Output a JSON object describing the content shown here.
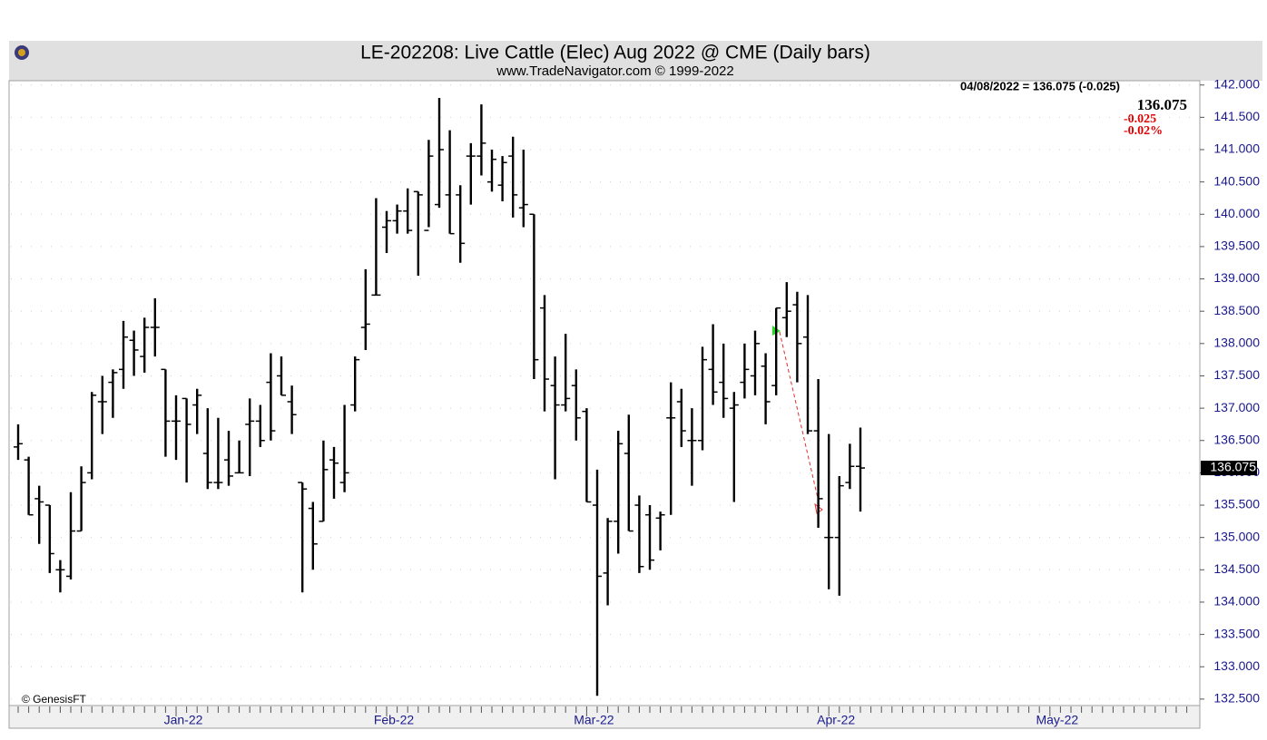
{
  "chart_data": {
    "type": "ohlc",
    "title": "LE-202208:  Live Cattle (Elec) Aug 2022 @ CME  (Daily bars)",
    "subtitle": "www.TradeNavigator.com © 1999-2022",
    "info": "04/08/2022 = 136.075 (-0.025)",
    "last": "136.075",
    "change": "-0.025",
    "change_pct": "-0.02%",
    "source": "© GenesisFT",
    "last_price": 136.075,
    "color": "#000000",
    "grid": true,
    "ylim": [
      132.4,
      142.08
    ],
    "yticks": [
      {
        "value": 132.5,
        "label": "132.500"
      },
      {
        "value": 133,
        "label": "133.000"
      },
      {
        "value": 133.5,
        "label": "133.500"
      },
      {
        "value": 134,
        "label": "134.000"
      },
      {
        "value": 134.5,
        "label": "134.500"
      },
      {
        "value": 135,
        "label": "135.000"
      },
      {
        "value": 135.5,
        "label": "135.500"
      },
      {
        "value": 136,
        "label": "136.000"
      },
      {
        "value": 136.5,
        "label": "136.500"
      },
      {
        "value": 137,
        "label": "137.000"
      },
      {
        "value": 137.5,
        "label": "137.500"
      },
      {
        "value": 138,
        "label": "138.000"
      },
      {
        "value": 138.5,
        "label": "138.500"
      },
      {
        "value": 139,
        "label": "139.000"
      },
      {
        "value": 139.5,
        "label": "139.500"
      },
      {
        "value": 140,
        "label": "140.000"
      },
      {
        "value": 140.5,
        "label": "140.500"
      },
      {
        "value": 141,
        "label": "141.000"
      },
      {
        "value": 141.5,
        "label": "141.500"
      },
      {
        "value": 142,
        "label": "142.000"
      }
    ],
    "categories": [
      null,
      null,
      null,
      null,
      null,
      null,
      null,
      null,
      null,
      null,
      null,
      null,
      null,
      null,
      null,
      "Jan-22",
      null,
      null,
      null,
      null,
      null,
      null,
      null,
      null,
      null,
      null,
      null,
      null,
      null,
      null,
      null,
      null,
      null,
      null,
      null,
      "Feb-22",
      null,
      null,
      null,
      null,
      null,
      null,
      null,
      null,
      null,
      null,
      null,
      null,
      null,
      null,
      null,
      null,
      null,
      null,
      "Mar-22",
      null,
      null,
      null,
      null,
      null,
      null,
      null,
      null,
      null,
      null,
      null,
      null,
      null,
      null,
      null,
      null,
      null,
      null,
      null,
      null,
      null,
      null,
      "Apr-22",
      null,
      null,
      null,
      null,
      null,
      null,
      null,
      null,
      null,
      null,
      null,
      null,
      null,
      null,
      null,
      null,
      null,
      null,
      null,
      null,
      "May-22",
      null,
      null,
      null,
      null,
      null,
      null,
      null,
      null,
      null,
      null,
      null,
      null,
      null
    ],
    "open": [
      136.4,
      136.2,
      135.6,
      135.5,
      134.5,
      134.4,
      135.1,
      136.0,
      137.1,
      137.4,
      137.6,
      138.05,
      137.8,
      138.25,
      137.6,
      136.8,
      137.15,
      137.05,
      136.3,
      135.85,
      136.2,
      136.0,
      136.75,
      136.8,
      137.4,
      137.5,
      137.1,
      135.85,
      135.45,
      135.25,
      136.2,
      135.85,
      137.05,
      138.25,
      138.75,
      139.8,
      139.9,
      140.05,
      140.35,
      139.75,
      140.15,
      140.3,
      140.3,
      140.9,
      140.9,
      140.5,
      140.45,
      140.9,
      140.1,
      140.0,
      138.55,
      137.35,
      137.05,
      137.35,
      136.95,
      135.5,
      134.45,
      135.25,
      136.3,
      135.5,
      135.35,
      135.3,
      136.85,
      137.1,
      136.5,
      136.5,
      137.6,
      137.4,
      137.0,
      137.4,
      137.5,
      137.65,
      137.35,
      138.4,
      138.6,
      138.1,
      136.65,
      135.0,
      135.0,
      135.85,
      136.1,
      null,
      null,
      null,
      null,
      null,
      null,
      null,
      null,
      null,
      null,
      null,
      null,
      null,
      null,
      null,
      null,
      null,
      null,
      null,
      null,
      null,
      null,
      null,
      null,
      null,
      null,
      null,
      null,
      null,
      null,
      null
    ],
    "high": [
      136.75,
      136.25,
      135.8,
      135.5,
      134.65,
      135.7,
      136.1,
      137.25,
      137.5,
      137.6,
      138.35,
      138.2,
      138.4,
      138.7,
      137.6,
      137.2,
      137.15,
      137.3,
      137.0,
      136.85,
      136.65,
      136.5,
      137.15,
      137.05,
      137.85,
      137.8,
      137.35,
      135.85,
      135.55,
      136.5,
      136.4,
      137.05,
      137.8,
      139.15,
      140.25,
      140.05,
      140.15,
      140.4,
      140.35,
      141.15,
      141.8,
      141.3,
      140.45,
      141.1,
      141.7,
      141.0,
      140.9,
      141.2,
      141.0,
      140.0,
      138.75,
      137.8,
      138.15,
      137.6,
      137.0,
      136.05,
      135.3,
      136.65,
      136.9,
      135.65,
      135.5,
      135.4,
      137.4,
      137.3,
      137.0,
      137.95,
      138.3,
      138.0,
      137.25,
      138.0,
      138.2,
      137.85,
      138.55,
      138.95,
      138.8,
      138.75,
      137.45,
      136.6,
      135.95,
      136.45,
      136.7,
      null,
      null,
      null,
      null,
      null,
      null,
      null,
      null,
      null,
      null,
      null,
      null,
      null,
      null,
      null,
      null,
      null,
      null,
      null,
      null,
      null,
      null,
      null,
      null,
      null,
      null,
      null,
      null,
      null,
      null,
      null
    ],
    "low": [
      136.2,
      135.35,
      134.9,
      134.45,
      134.15,
      134.35,
      135.1,
      135.9,
      136.6,
      136.85,
      137.3,
      137.5,
      137.55,
      137.8,
      136.25,
      136.2,
      135.85,
      136.6,
      135.75,
      135.75,
      135.8,
      136.0,
      135.95,
      136.4,
      136.5,
      137.2,
      136.6,
      134.15,
      134.5,
      135.25,
      135.6,
      135.7,
      136.95,
      137.9,
      138.75,
      139.4,
      139.7,
      139.7,
      139.05,
      139.8,
      140.1,
      139.7,
      139.25,
      140.15,
      140.6,
      140.35,
      140.2,
      139.95,
      139.8,
      137.45,
      136.95,
      135.9,
      136.95,
      136.5,
      135.55,
      132.55,
      133.95,
      134.75,
      135.1,
      134.45,
      134.5,
      134.8,
      135.35,
      136.4,
      135.8,
      136.35,
      137.05,
      136.85,
      135.55,
      137.15,
      137.2,
      136.75,
      137.2,
      138.1,
      137.4,
      136.6,
      135.15,
      134.2,
      134.1,
      135.75,
      135.4,
      null,
      null,
      null,
      null,
      null,
      null,
      null,
      null,
      null,
      null,
      null,
      null,
      null,
      null,
      null,
      null,
      null,
      null,
      null,
      null,
      null,
      null,
      null,
      null,
      null,
      null,
      null,
      null,
      null,
      null,
      null
    ],
    "close": [
      136.45,
      135.35,
      135.55,
      134.75,
      134.5,
      135.1,
      135.85,
      137.2,
      137.1,
      137.55,
      138.1,
      137.9,
      138.25,
      138.25,
      136.8,
      136.8,
      136.75,
      137.2,
      135.85,
      135.85,
      135.95,
      136.0,
      136.8,
      136.5,
      136.65,
      137.2,
      136.9,
      135.75,
      134.9,
      136.05,
      136.15,
      136.0,
      137.75,
      138.3,
      138.75,
      139.9,
      140.05,
      139.75,
      140.3,
      140.9,
      141.0,
      139.7,
      139.55,
      140.9,
      141.1,
      140.85,
      140.8,
      140.3,
      140.15,
      137.75,
      137.45,
      137.05,
      137.15,
      136.85,
      135.55,
      134.4,
      135.25,
      136.45,
      135.1,
      134.55,
      134.65,
      135.35,
      136.85,
      136.65,
      136.5,
      137.75,
      137.25,
      137.15,
      137.05,
      137.6,
      138.0,
      137.1,
      138.55,
      138.5,
      138.0,
      136.65,
      135.6,
      135.0,
      135.8,
      136.1,
      136.075,
      null,
      null,
      null,
      null,
      null,
      null,
      null,
      null,
      null,
      null,
      null,
      null,
      null,
      null,
      null,
      null,
      null,
      null,
      null,
      null,
      null,
      null,
      null,
      null,
      null,
      null,
      null,
      null,
      null,
      null,
      null
    ]
  }
}
